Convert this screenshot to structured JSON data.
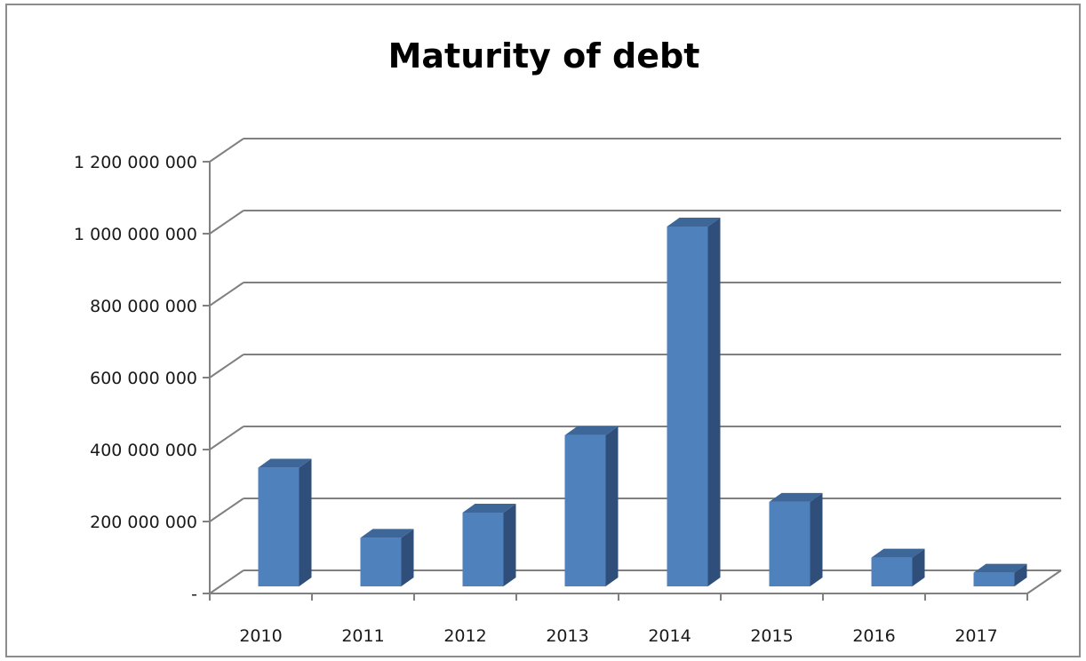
{
  "chart_data": {
    "type": "bar",
    "title": "Maturity of debt",
    "xlabel": "",
    "ylabel": "",
    "categories": [
      "2010",
      "2011",
      "2012",
      "2013",
      "2014",
      "2015",
      "2016",
      "2017"
    ],
    "values": [
      330000000,
      135000000,
      205000000,
      420000000,
      1000000000,
      235000000,
      80000000,
      38000000
    ],
    "ylim": [
      0,
      1200000000
    ],
    "yticks": [
      0,
      200000000,
      400000000,
      600000000,
      800000000,
      1000000000,
      1200000000
    ],
    "ytick_labels": [
      "-",
      "200 000 000",
      "400 000 000",
      "600 000 000",
      "800 000 000",
      "1 000 000 000",
      "1 200 000 000"
    ],
    "grid": true,
    "style": "3d-column",
    "colors": {
      "bar_front": "#4f81bd",
      "bar_side": "#2f4f7a",
      "bar_top": "#3d6699",
      "grid": "#808080"
    }
  }
}
